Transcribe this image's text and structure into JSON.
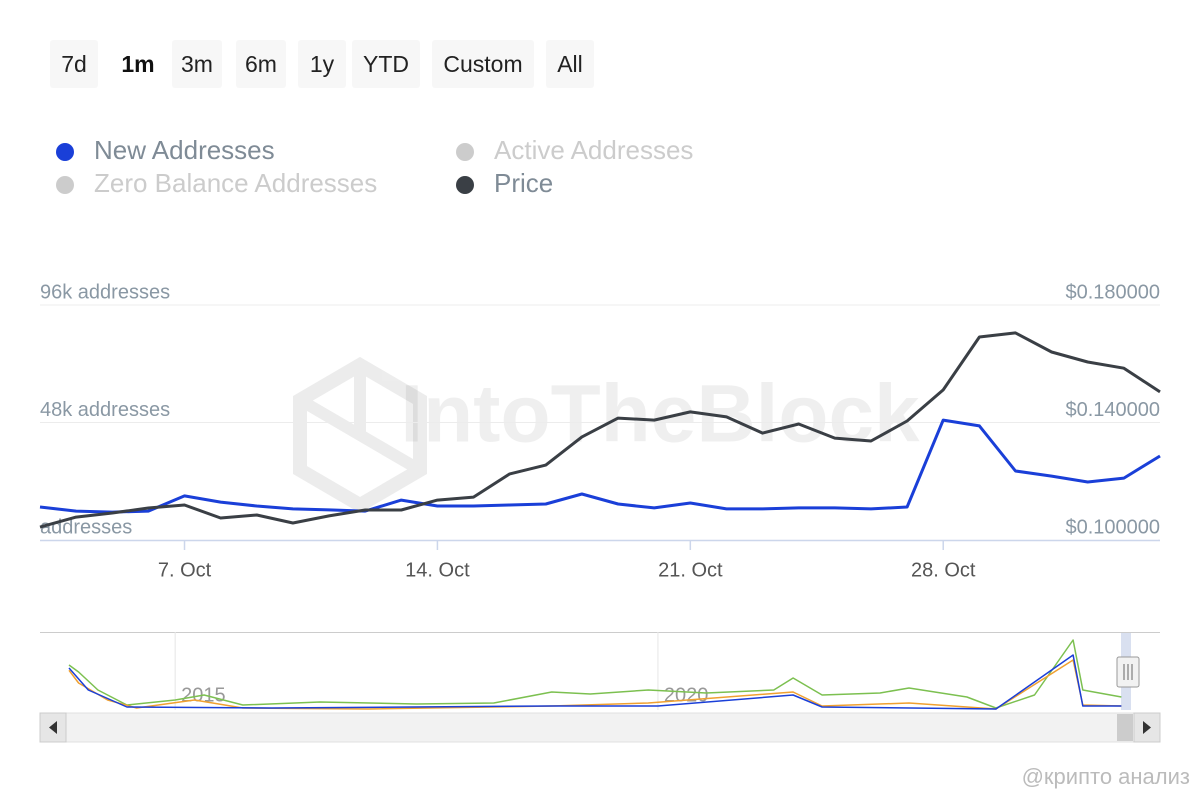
{
  "range_buttons": {
    "labels": [
      "7d",
      "1m",
      "3m",
      "6m",
      "1y",
      "YTD",
      "Custom",
      "All"
    ],
    "selected": "1m"
  },
  "watermark": "IntoTheBlock",
  "credit": "@крипто анализ",
  "chart_data": [
    {
      "type": "line",
      "categories": [
        null,
        null,
        null,
        null,
        "7. Oct",
        null,
        null,
        null,
        null,
        null,
        null,
        "14. Oct",
        null,
        null,
        null,
        null,
        null,
        null,
        "21. Oct",
        null,
        null,
        null,
        null,
        null,
        null,
        "28. Oct",
        null,
        null,
        null,
        null,
        null,
        null
      ],
      "series": [
        {
          "name": "New Addresses",
          "color": "#1a3fd8",
          "axis": "y",
          "visible": true,
          "values": [
            13500,
            11800,
            11400,
            11800,
            18000,
            15500,
            13900,
            12700,
            12300,
            11800,
            16300,
            13900,
            13900,
            14300,
            14700,
            18800,
            14700,
            13100,
            15100,
            12700,
            12700,
            13100,
            13100,
            12700,
            13500,
            49000,
            46600,
            28200,
            26100,
            23700,
            25300,
            34300
          ]
        },
        {
          "name": "Active Addresses",
          "color": "#cccccc",
          "visible": false
        },
        {
          "name": "Zero Balance Addresses",
          "color": "#cccccc",
          "visible": false
        },
        {
          "name": "Price",
          "color": "#3a3f45",
          "axis": "y2",
          "visible": true,
          "values": [
            0.1044,
            0.1078,
            0.1092,
            0.1109,
            0.1119,
            0.1075,
            0.1085,
            0.1058,
            0.1082,
            0.1102,
            0.1102,
            0.1136,
            0.1146,
            0.1225,
            0.1255,
            0.1351,
            0.1415,
            0.1408,
            0.1436,
            0.1419,
            0.1364,
            0.1395,
            0.1347,
            0.1337,
            0.1405,
            0.1511,
            0.1691,
            0.1705,
            0.164,
            0.1606,
            0.1585,
            0.1504
          ]
        }
      ],
      "ylim": [
        0,
        96000
      ],
      "yticks": [
        {
          "value": 0,
          "label": "addresses"
        },
        {
          "value": 48000,
          "label": "48k addresses"
        },
        {
          "value": 96000,
          "label": "96k addresses"
        }
      ],
      "y2lim": [
        0.1,
        0.18
      ],
      "y2ticks": [
        {
          "value": 0.1,
          "label": "$0.100000"
        },
        {
          "value": 0.14,
          "label": "$0.140000"
        },
        {
          "value": 0.18,
          "label": "$0.180000"
        }
      ],
      "grid": true,
      "legend": "top-left"
    },
    {
      "type": "line",
      "xlim": [
        2013.6,
        2025.2
      ],
      "xticks": [
        2015,
        2020
      ],
      "ylim": [
        0,
        100000
      ],
      "grid": true,
      "series": [
        {
          "color": "#7cc050",
          "x": [
            2013.9,
            2014.0,
            2014.2,
            2014.5,
            2015.0,
            2015.3,
            2015.7,
            2016.5,
            2017.5,
            2018.3,
            2018.9,
            2019.3,
            2019.9,
            2020.5,
            2021.2,
            2021.4,
            2021.7,
            2022.3,
            2022.6,
            2023.2,
            2023.5,
            2023.9,
            2024.3,
            2024.4,
            2024.8
          ],
          "values": [
            60000,
            50700,
            26700,
            6700,
            13300,
            20000,
            6700,
            10700,
            8000,
            9300,
            24000,
            21300,
            26700,
            22700,
            26700,
            42700,
            20000,
            22700,
            29300,
            17300,
            2700,
            20000,
            93300,
            26700,
            17300
          ]
        },
        {
          "color": "#f0a030",
          "x": [
            2013.9,
            2014.0,
            2014.3,
            2014.6,
            2015.2,
            2015.7,
            2017.0,
            2018.9,
            2019.9,
            2021.4,
            2021.7,
            2022.6,
            2023.5,
            2024.3,
            2024.4,
            2024.8
          ],
          "values": [
            53000,
            36000,
            13300,
            2700,
            13300,
            2700,
            1300,
            5300,
            9300,
            24000,
            5300,
            9300,
            1300,
            66700,
            6700,
            5300
          ]
        },
        {
          "color": "#1a3fd8",
          "x": [
            2013.9,
            2014.1,
            2014.5,
            2016.0,
            2018.9,
            2020.0,
            2021.4,
            2021.7,
            2023.5,
            2024.3,
            2024.4,
            2024.8
          ],
          "values": [
            56000,
            26700,
            4000,
            2700,
            5300,
            5300,
            20000,
            4000,
            1300,
            73300,
            5300,
            5300
          ]
        }
      ]
    }
  ]
}
